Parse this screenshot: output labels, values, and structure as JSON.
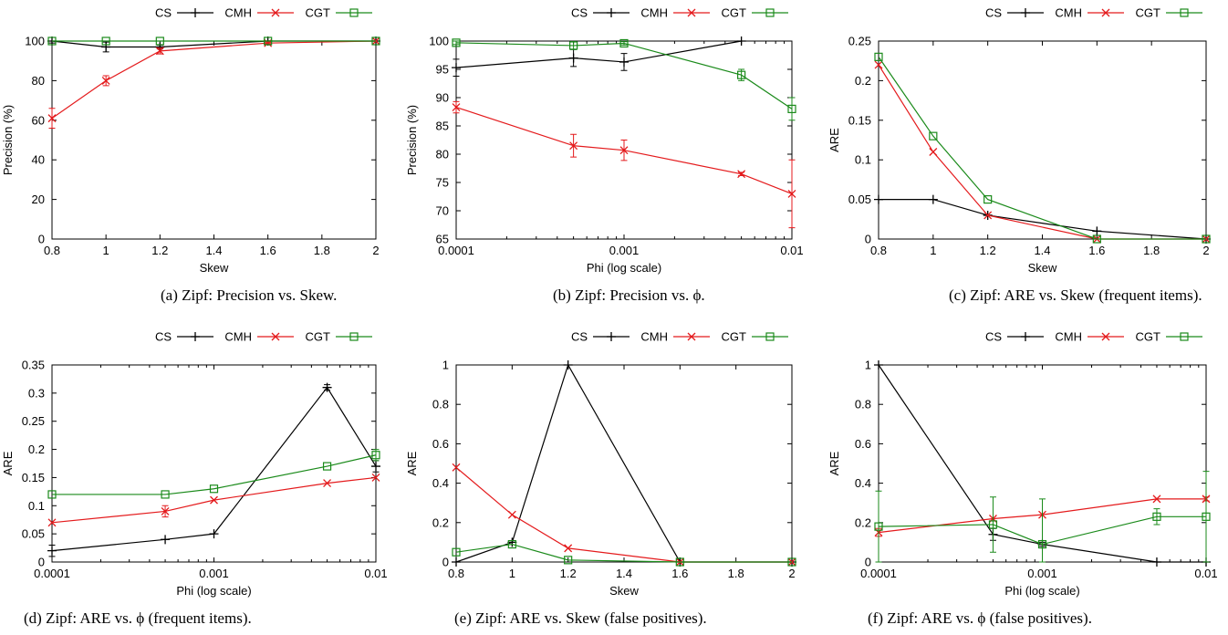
{
  "colors": {
    "CS": "#000000",
    "CMH": "#e41a1c",
    "CGT": "#1a8a1a"
  },
  "chart_data": [
    {
      "type": "line",
      "xlabel": "Skew",
      "ylabel": "Precision (%)",
      "xscale": "linear",
      "xlim": [
        0.8,
        2
      ],
      "ylim": [
        0,
        100
      ],
      "xticks": [
        0.8,
        1,
        1.2,
        1.4,
        1.6,
        1.8,
        2
      ],
      "xticklabels": [
        "0.8",
        "1",
        "1.2",
        "1.4",
        "1.6",
        "1.8",
        "2"
      ],
      "yticks": [
        0,
        20,
        40,
        60,
        80,
        100
      ],
      "yticklabels": [
        "0",
        "20",
        "40",
        "60",
        "80",
        "100"
      ],
      "legend": [
        "CS",
        "CMH",
        "CGT"
      ],
      "legend_position": "top-right",
      "caption": "(a) Zipf: Precision vs. Skew.",
      "series": [
        {
          "name": "CS",
          "x": [
            0.8,
            1,
            1.2,
            1.6,
            2
          ],
          "y": [
            100,
            97,
            97,
            100,
            100
          ],
          "err": [
            1,
            2.5,
            1,
            0.5,
            0
          ]
        },
        {
          "name": "CMH",
          "x": [
            0.8,
            1,
            1.2,
            1.6,
            2
          ],
          "y": [
            61,
            80,
            95,
            99,
            100
          ],
          "err": [
            5,
            2.5,
            1.5,
            0.5,
            0
          ]
        },
        {
          "name": "CGT",
          "x": [
            0.8,
            1,
            1.2,
            1.6,
            2
          ],
          "y": [
            100,
            100,
            100,
            100,
            100
          ],
          "err": [
            0,
            0,
            0,
            0,
            0
          ]
        }
      ]
    },
    {
      "type": "line",
      "xlabel": "Phi (log scale)",
      "ylabel": "Precision (%)",
      "xscale": "log",
      "xlim": [
        0.0001,
        0.01
      ],
      "ylim": [
        65,
        100
      ],
      "xticks": [
        0.0001,
        0.001,
        0.01
      ],
      "xticklabels": [
        "0.0001",
        "0.001",
        "0.01"
      ],
      "yticks": [
        65,
        70,
        75,
        80,
        85,
        90,
        95,
        100
      ],
      "yticklabels": [
        "65",
        "70",
        "75",
        "80",
        "85",
        "90",
        "95",
        "100"
      ],
      "legend": [
        "CS",
        "CMH",
        "CGT"
      ],
      "legend_position": "top-right",
      "caption": "(b) Zipf: Precision vs. ϕ.",
      "series": [
        {
          "name": "CS",
          "x": [
            0.0001,
            0.0005,
            0.001,
            0.005
          ],
          "y": [
            95.3,
            97,
            96.3,
            100
          ],
          "err": [
            1.5,
            1.5,
            1.5,
            0
          ]
        },
        {
          "name": "CMH",
          "x": [
            0.0001,
            0.0005,
            0.001,
            0.005,
            0.01
          ],
          "y": [
            88.3,
            81.5,
            80.7,
            76.5,
            73
          ],
          "err": [
            1,
            2,
            1.8,
            0.3,
            6
          ]
        },
        {
          "name": "CGT",
          "x": [
            0.0001,
            0.0005,
            0.001,
            0.005,
            0.01
          ],
          "y": [
            99.7,
            99.2,
            99.6,
            94,
            88
          ],
          "err": [
            0.3,
            0.7,
            0.3,
            1,
            2
          ]
        }
      ]
    },
    {
      "type": "line",
      "xlabel": "Skew",
      "ylabel": "ARE",
      "xscale": "linear",
      "xlim": [
        0.8,
        2
      ],
      "ylim": [
        0,
        0.25
      ],
      "xticks": [
        0.8,
        1,
        1.2,
        1.4,
        1.6,
        1.8,
        2
      ],
      "xticklabels": [
        "0.8",
        "1",
        "1.2",
        "1.4",
        "1.6",
        "1.8",
        "2"
      ],
      "yticks": [
        0,
        0.05,
        0.1,
        0.15,
        0.2,
        0.25
      ],
      "yticklabels": [
        "0",
        "0.05",
        "0.1",
        "0.15",
        "0.2",
        "0.25"
      ],
      "legend": [
        "CS",
        "CMH",
        "CGT"
      ],
      "legend_position": "top-right",
      "caption": "(c) Zipf: ARE vs. Skew (frequent items).",
      "series": [
        {
          "name": "CS",
          "x": [
            0.8,
            1,
            1.2,
            1.6,
            2
          ],
          "y": [
            0.05,
            0.05,
            0.03,
            0.01,
            0
          ],
          "err": [
            0,
            0,
            0,
            0,
            0
          ]
        },
        {
          "name": "CMH",
          "x": [
            0.8,
            1,
            1.2,
            1.6,
            2
          ],
          "y": [
            0.22,
            0.11,
            0.03,
            0,
            0
          ],
          "err": [
            0,
            0,
            0,
            0,
            0
          ]
        },
        {
          "name": "CGT",
          "x": [
            0.8,
            1,
            1.2,
            1.6,
            2
          ],
          "y": [
            0.23,
            0.13,
            0.05,
            0,
            0
          ],
          "err": [
            0,
            0,
            0,
            0,
            0
          ]
        }
      ]
    },
    {
      "type": "line",
      "xlabel": "Phi (log scale)",
      "ylabel": "ARE",
      "xscale": "log",
      "xlim": [
        0.0001,
        0.01
      ],
      "ylim": [
        0,
        0.35
      ],
      "xticks": [
        0.0001,
        0.001,
        0.01
      ],
      "xticklabels": [
        "0.0001",
        "0.001",
        "0.01"
      ],
      "yticks": [
        0,
        0.05,
        0.1,
        0.15,
        0.2,
        0.25,
        0.3,
        0.35
      ],
      "yticklabels": [
        "0",
        "0.05",
        "0.1",
        "0.15",
        "0.2",
        "0.25",
        "0.3",
        "0.35"
      ],
      "legend": [
        "CS",
        "CMH",
        "CGT"
      ],
      "legend_position": "top-right",
      "caption": "(d) Zipf: ARE vs. ϕ (frequent items).",
      "series": [
        {
          "name": "CS",
          "x": [
            0.0001,
            0.0005,
            0.001,
            0.005,
            0.01
          ],
          "y": [
            0.02,
            0.04,
            0.05,
            0.31,
            0.17
          ],
          "err": [
            0.01,
            0,
            0,
            0.005,
            0.01
          ]
        },
        {
          "name": "CMH",
          "x": [
            0.0001,
            0.0005,
            0.001,
            0.005,
            0.01
          ],
          "y": [
            0.07,
            0.09,
            0.11,
            0.14,
            0.15
          ],
          "err": [
            0,
            0.01,
            0,
            0,
            0
          ]
        },
        {
          "name": "CGT",
          "x": [
            0.0001,
            0.0005,
            0.001,
            0.005,
            0.01
          ],
          "y": [
            0.12,
            0.12,
            0.13,
            0.17,
            0.19
          ],
          "err": [
            0,
            0,
            0,
            0,
            0.01
          ]
        }
      ]
    },
    {
      "type": "line",
      "xlabel": "Skew",
      "ylabel": "ARE",
      "xscale": "linear",
      "xlim": [
        0.8,
        2
      ],
      "ylim": [
        0,
        1
      ],
      "xticks": [
        0.8,
        1,
        1.2,
        1.4,
        1.6,
        1.8,
        2
      ],
      "xticklabels": [
        "0.8",
        "1",
        "1.2",
        "1.4",
        "1.6",
        "1.8",
        "2"
      ],
      "yticks": [
        0,
        0.2,
        0.4,
        0.6,
        0.8,
        1
      ],
      "yticklabels": [
        "0",
        "0.2",
        "0.4",
        "0.6",
        "0.8",
        "1"
      ],
      "legend": [
        "CS",
        "CMH",
        "CGT"
      ],
      "legend_position": "top-right",
      "caption": "(e) Zipf: ARE vs. Skew (false positives).",
      "series": [
        {
          "name": "CS",
          "x": [
            0.8,
            1,
            1.2,
            1.6,
            2
          ],
          "y": [
            0,
            0.1,
            1,
            0,
            0
          ],
          "err": [
            0,
            0,
            0,
            0,
            0
          ]
        },
        {
          "name": "CMH",
          "x": [
            0.8,
            1,
            1.2,
            1.6,
            2
          ],
          "y": [
            0.48,
            0.24,
            0.07,
            0,
            0
          ],
          "err": [
            0,
            0,
            0,
            0,
            0
          ]
        },
        {
          "name": "CGT",
          "x": [
            0.8,
            1,
            1.2,
            1.6,
            2
          ],
          "y": [
            0.05,
            0.09,
            0.01,
            0,
            0
          ],
          "err": [
            0,
            0,
            0,
            0,
            0
          ]
        }
      ]
    },
    {
      "type": "line",
      "xlabel": "Phi (log scale)",
      "ylabel": "ARE",
      "xscale": "log",
      "xlim": [
        0.0001,
        0.01
      ],
      "ylim": [
        0,
        1
      ],
      "xticks": [
        0.0001,
        0.001,
        0.01
      ],
      "xticklabels": [
        "0.0001",
        "0.001",
        "0.01"
      ],
      "yticks": [
        0,
        0.2,
        0.4,
        0.6,
        0.8,
        1
      ],
      "yticklabels": [
        "0",
        "0.2",
        "0.4",
        "0.6",
        "0.8",
        "1"
      ],
      "legend": [
        "CS",
        "CMH",
        "CGT"
      ],
      "legend_position": "top-right",
      "caption": "(f) Zipf: ARE vs. ϕ (false positives).",
      "series": [
        {
          "name": "CS",
          "x": [
            0.0001,
            0.0005,
            0.001,
            0.005,
            0.01
          ],
          "y": [
            1,
            0.14,
            0.09,
            0,
            0
          ],
          "err": [
            0,
            0.03,
            0.01,
            0,
            0
          ]
        },
        {
          "name": "CMH",
          "x": [
            0.0001,
            0.0005,
            0.001,
            0.005,
            0.01
          ],
          "y": [
            0.15,
            0.22,
            0.24,
            0.32,
            0.32
          ],
          "err": [
            0.02,
            0,
            0,
            0,
            0.01
          ]
        },
        {
          "name": "CGT",
          "x": [
            0.0001,
            0.0005,
            0.001,
            0.005,
            0.01
          ],
          "y": [
            0.18,
            0.19,
            0.09,
            0.23,
            0.23
          ],
          "err": [
            0.18,
            0.14,
            0.23,
            0.04,
            0.23
          ]
        }
      ]
    }
  ]
}
